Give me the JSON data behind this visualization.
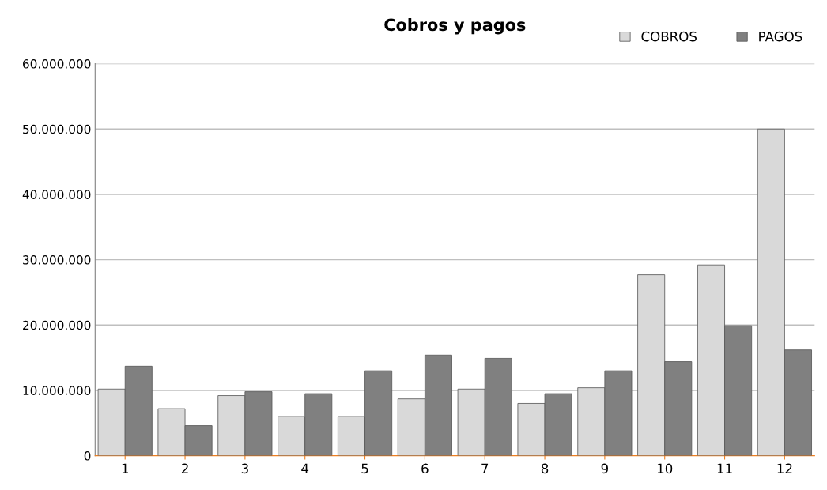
{
  "chart_data": {
    "type": "bar",
    "title": "Cobros y pagos",
    "categories": [
      "1",
      "2",
      "3",
      "4",
      "5",
      "6",
      "7",
      "8",
      "9",
      "10",
      "11",
      "12"
    ],
    "series": [
      {
        "name": "COBROS",
        "color": "#d9d9d9",
        "values": [
          10200000,
          7200000,
          9200000,
          6000000,
          6000000,
          8700000,
          10200000,
          8000000,
          10400000,
          27700000,
          29200000,
          50000000
        ]
      },
      {
        "name": "PAGOS",
        "color": "#808080",
        "values": [
          13700000,
          4600000,
          9800000,
          9500000,
          13000000,
          15400000,
          14900000,
          9500000,
          13000000,
          14400000,
          19900000,
          16200000
        ]
      }
    ],
    "ylim": [
      0,
      60000000
    ],
    "yticks": [
      {
        "value": 0,
        "label": "0"
      },
      {
        "value": 10000000,
        "label": "10.000.000"
      },
      {
        "value": 20000000,
        "label": "20.000.000"
      },
      {
        "value": 30000000,
        "label": "30.000.000"
      },
      {
        "value": 40000000,
        "label": "40.000.000"
      },
      {
        "value": 50000000,
        "label": "50.000.000"
      },
      {
        "value": 60000000,
        "label": "60.000.000"
      }
    ],
    "grid": "y",
    "legend": "top right"
  }
}
